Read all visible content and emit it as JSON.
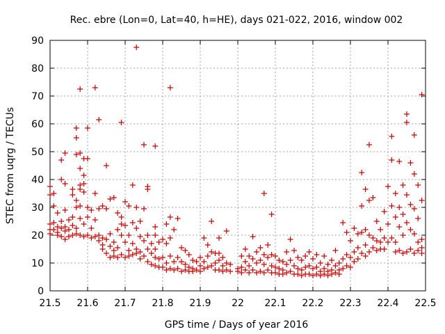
{
  "chart_data": {
    "type": "scatter",
    "title": "Rec. ebre (Lon=0, Lat=40, h=HE), days 021-022, 2016, window 002",
    "xlabel": "GPS time / Days of year 2016",
    "ylabel": "STEC from uqrg / TECUs",
    "xlim": [
      21.5,
      22.5
    ],
    "ylim": [
      0,
      90
    ],
    "x_ticks": [
      "21.5",
      "21.6",
      "21.7",
      "21.8",
      "21.9",
      "22",
      "22.1",
      "22.2",
      "22.3",
      "22.4",
      "22.5"
    ],
    "y_ticks": [
      "0",
      "10",
      "20",
      "30",
      "40",
      "50",
      "60",
      "70",
      "80",
      "90"
    ],
    "grid": true,
    "marker": "plus",
    "color": "#cc0000",
    "points": [
      [
        21.5,
        37.5
      ],
      [
        21.5,
        34.5
      ],
      [
        21.5,
        24.0
      ],
      [
        21.5,
        22.0
      ],
      [
        21.5,
        20.5
      ],
      [
        21.51,
        35.0
      ],
      [
        21.51,
        30.5
      ],
      [
        21.51,
        24.5
      ],
      [
        21.51,
        22.0
      ],
      [
        21.52,
        28.0
      ],
      [
        21.52,
        23.0
      ],
      [
        21.52,
        21.0
      ],
      [
        21.52,
        20.0
      ],
      [
        21.53,
        47.0
      ],
      [
        21.53,
        40.0
      ],
      [
        21.53,
        25.0
      ],
      [
        21.53,
        22.5
      ],
      [
        21.53,
        19.5
      ],
      [
        21.54,
        49.5
      ],
      [
        21.54,
        38.5
      ],
      [
        21.54,
        29.0
      ],
      [
        21.54,
        23.0
      ],
      [
        21.54,
        21.5
      ],
      [
        21.54,
        18.5
      ],
      [
        21.55,
        25.5
      ],
      [
        21.55,
        22.0
      ],
      [
        21.55,
        19.5
      ],
      [
        21.56,
        36.5
      ],
      [
        21.56,
        34.5
      ],
      [
        21.56,
        26.5
      ],
      [
        21.56,
        23.5
      ],
      [
        21.56,
        20.0
      ],
      [
        21.57,
        58.5
      ],
      [
        21.57,
        55.0
      ],
      [
        21.57,
        49.0
      ],
      [
        21.57,
        32.5
      ],
      [
        21.57,
        30.0
      ],
      [
        21.57,
        22.5
      ],
      [
        21.57,
        20.5
      ],
      [
        21.58,
        72.5
      ],
      [
        21.58,
        49.5
      ],
      [
        21.58,
        44.0
      ],
      [
        21.58,
        38.0
      ],
      [
        21.58,
        36.5
      ],
      [
        21.58,
        30.5
      ],
      [
        21.58,
        26.0
      ],
      [
        21.58,
        20.0
      ],
      [
        21.59,
        47.5
      ],
      [
        21.59,
        41.5
      ],
      [
        21.59,
        38.5
      ],
      [
        21.59,
        35.5
      ],
      [
        21.59,
        24.0
      ],
      [
        21.59,
        19.5
      ],
      [
        21.6,
        58.5
      ],
      [
        21.6,
        47.5
      ],
      [
        21.6,
        30.0
      ],
      [
        21.6,
        26.5
      ],
      [
        21.6,
        20.0
      ],
      [
        21.61,
        29.0
      ],
      [
        21.61,
        22.5
      ],
      [
        21.61,
        19.0
      ],
      [
        21.62,
        73.0
      ],
      [
        21.62,
        35.0
      ],
      [
        21.62,
        25.5
      ],
      [
        21.62,
        19.5
      ],
      [
        21.63,
        61.5
      ],
      [
        21.63,
        29.5
      ],
      [
        21.63,
        20.0
      ],
      [
        21.63,
        18.0
      ],
      [
        21.64,
        30.5
      ],
      [
        21.64,
        19.0
      ],
      [
        21.64,
        16.5
      ],
      [
        21.64,
        15.0
      ],
      [
        21.65,
        45.0
      ],
      [
        21.65,
        29.5
      ],
      [
        21.65,
        18.5
      ],
      [
        21.65,
        13.5
      ],
      [
        21.66,
        33.0
      ],
      [
        21.66,
        20.5
      ],
      [
        21.66,
        16.0
      ],
      [
        21.66,
        12.0
      ],
      [
        21.67,
        33.5
      ],
      [
        21.67,
        17.5
      ],
      [
        21.67,
        14.5
      ],
      [
        21.67,
        12.5
      ],
      [
        21.68,
        28.0
      ],
      [
        21.68,
        22.0
      ],
      [
        21.68,
        15.5
      ],
      [
        21.68,
        12.0
      ],
      [
        21.69,
        60.5
      ],
      [
        21.69,
        26.5
      ],
      [
        21.69,
        24.0
      ],
      [
        21.69,
        20.0
      ],
      [
        21.69,
        13.0
      ],
      [
        21.7,
        32.0
      ],
      [
        21.7,
        23.5
      ],
      [
        21.7,
        17.5
      ],
      [
        21.7,
        12.0
      ],
      [
        21.71,
        30.5
      ],
      [
        21.71,
        20.0
      ],
      [
        21.71,
        14.5
      ],
      [
        21.71,
        12.5
      ],
      [
        21.72,
        38.0
      ],
      [
        21.72,
        24.5
      ],
      [
        21.72,
        17.0
      ],
      [
        21.72,
        13.0
      ],
      [
        21.73,
        87.5
      ],
      [
        21.73,
        30.0
      ],
      [
        21.73,
        22.5
      ],
      [
        21.73,
        15.0
      ],
      [
        21.73,
        13.5
      ],
      [
        21.74,
        25.0
      ],
      [
        21.74,
        19.5
      ],
      [
        21.74,
        14.0
      ],
      [
        21.74,
        11.5
      ],
      [
        21.75,
        52.5
      ],
      [
        21.75,
        29.5
      ],
      [
        21.75,
        18.0
      ],
      [
        21.75,
        12.5
      ],
      [
        21.76,
        37.5
      ],
      [
        21.76,
        36.5
      ],
      [
        21.76,
        20.0
      ],
      [
        21.76,
        15.0
      ],
      [
        21.76,
        10.5
      ],
      [
        21.77,
        17.0
      ],
      [
        21.77,
        13.5
      ],
      [
        21.77,
        9.5
      ],
      [
        21.78,
        52.0
      ],
      [
        21.78,
        23.0
      ],
      [
        21.78,
        20.0
      ],
      [
        21.78,
        15.0
      ],
      [
        21.78,
        12.0
      ],
      [
        21.78,
        9.0
      ],
      [
        21.79,
        17.5
      ],
      [
        21.79,
        11.5
      ],
      [
        21.79,
        8.5
      ],
      [
        21.8,
        18.5
      ],
      [
        21.8,
        12.0
      ],
      [
        21.8,
        8.5
      ],
      [
        21.81,
        24.0
      ],
      [
        21.81,
        17.0
      ],
      [
        21.81,
        10.0
      ],
      [
        21.81,
        7.5
      ],
      [
        21.82,
        73.0
      ],
      [
        21.82,
        26.5
      ],
      [
        21.82,
        19.0
      ],
      [
        21.82,
        12.5
      ],
      [
        21.82,
        8.0
      ],
      [
        21.83,
        22.0
      ],
      [
        21.83,
        10.5
      ],
      [
        21.83,
        7.5
      ],
      [
        21.84,
        26.0
      ],
      [
        21.84,
        12.0
      ],
      [
        21.84,
        8.0
      ],
      [
        21.85,
        15.5
      ],
      [
        21.85,
        10.5
      ],
      [
        21.85,
        7.0
      ],
      [
        21.86,
        14.5
      ],
      [
        21.86,
        9.5
      ],
      [
        21.86,
        7.5
      ],
      [
        21.87,
        13.0
      ],
      [
        21.87,
        8.5
      ],
      [
        21.87,
        7.0
      ],
      [
        21.88,
        11.0
      ],
      [
        21.88,
        8.0
      ],
      [
        21.88,
        7.0
      ],
      [
        21.89,
        10.5
      ],
      [
        21.89,
        7.5
      ],
      [
        21.9,
        12.0
      ],
      [
        21.9,
        9.0
      ],
      [
        21.9,
        7.0
      ],
      [
        21.91,
        19.0
      ],
      [
        21.91,
        10.5
      ],
      [
        21.91,
        8.0
      ],
      [
        21.92,
        16.5
      ],
      [
        21.92,
        12.5
      ],
      [
        21.92,
        8.5
      ],
      [
        21.93,
        25.0
      ],
      [
        21.93,
        14.0
      ],
      [
        21.93,
        9.0
      ],
      [
        21.94,
        13.5
      ],
      [
        21.94,
        10.0
      ],
      [
        21.94,
        7.5
      ],
      [
        21.95,
        19.0
      ],
      [
        21.95,
        13.5
      ],
      [
        21.95,
        11.0
      ],
      [
        21.95,
        7.5
      ],
      [
        21.96,
        12.0
      ],
      [
        21.96,
        9.0
      ],
      [
        21.96,
        7.0
      ],
      [
        21.97,
        21.5
      ],
      [
        21.97,
        10.0
      ],
      [
        21.97,
        7.5
      ],
      [
        21.98,
        9.5
      ],
      [
        21.98,
        7.0
      ],
      [
        22.0,
        8.0
      ],
      [
        22.0,
        7.0
      ],
      [
        22.01,
        12.5
      ],
      [
        22.01,
        8.5
      ],
      [
        22.01,
        6.5
      ],
      [
        22.02,
        15.0
      ],
      [
        22.02,
        10.5
      ],
      [
        22.02,
        7.5
      ],
      [
        22.03,
        12.5
      ],
      [
        22.03,
        9.0
      ],
      [
        22.03,
        6.5
      ],
      [
        22.04,
        19.5
      ],
      [
        22.04,
        11.5
      ],
      [
        22.04,
        7.5
      ],
      [
        22.05,
        14.0
      ],
      [
        22.05,
        10.0
      ],
      [
        22.05,
        6.5
      ],
      [
        22.06,
        15.5
      ],
      [
        22.06,
        11.0
      ],
      [
        22.06,
        7.0
      ],
      [
        22.07,
        35.0
      ],
      [
        22.07,
        13.0
      ],
      [
        22.07,
        9.5
      ],
      [
        22.07,
        6.5
      ],
      [
        22.08,
        16.5
      ],
      [
        22.08,
        12.0
      ],
      [
        22.08,
        7.5
      ],
      [
        22.09,
        27.5
      ],
      [
        22.09,
        13.0
      ],
      [
        22.09,
        9.0
      ],
      [
        22.09,
        6.5
      ],
      [
        22.1,
        12.5
      ],
      [
        22.1,
        8.5
      ],
      [
        22.1,
        6.5
      ],
      [
        22.11,
        11.0
      ],
      [
        22.11,
        8.0
      ],
      [
        22.11,
        6.0
      ],
      [
        22.12,
        10.5
      ],
      [
        22.12,
        7.5
      ],
      [
        22.12,
        6.0
      ],
      [
        22.13,
        14.0
      ],
      [
        22.13,
        9.5
      ],
      [
        22.13,
        6.5
      ],
      [
        22.14,
        18.5
      ],
      [
        22.14,
        11.0
      ],
      [
        22.14,
        7.0
      ],
      [
        22.15,
        14.5
      ],
      [
        22.15,
        9.0
      ],
      [
        22.15,
        6.0
      ],
      [
        22.16,
        12.0
      ],
      [
        22.16,
        8.0
      ],
      [
        22.16,
        6.0
      ],
      [
        22.17,
        11.0
      ],
      [
        22.17,
        7.5
      ],
      [
        22.17,
        5.5
      ],
      [
        22.18,
        12.5
      ],
      [
        22.18,
        8.5
      ],
      [
        22.18,
        6.0
      ],
      [
        22.19,
        14.0
      ],
      [
        22.19,
        9.0
      ],
      [
        22.19,
        6.0
      ],
      [
        22.2,
        11.5
      ],
      [
        22.2,
        8.0
      ],
      [
        22.2,
        5.5
      ],
      [
        22.21,
        13.0
      ],
      [
        22.21,
        8.5
      ],
      [
        22.21,
        6.0
      ],
      [
        22.22,
        10.0
      ],
      [
        22.22,
        7.0
      ],
      [
        22.22,
        5.5
      ],
      [
        22.23,
        12.5
      ],
      [
        22.23,
        8.0
      ],
      [
        22.23,
        6.0
      ],
      [
        22.24,
        9.5
      ],
      [
        22.24,
        7.0
      ],
      [
        22.24,
        5.5
      ],
      [
        22.25,
        11.0
      ],
      [
        22.25,
        7.5
      ],
      [
        22.25,
        6.0
      ],
      [
        22.26,
        14.5
      ],
      [
        22.26,
        9.0
      ],
      [
        22.26,
        6.5
      ],
      [
        22.27,
        10.0
      ],
      [
        22.27,
        7.5
      ],
      [
        22.27,
        6.0
      ],
      [
        22.28,
        24.5
      ],
      [
        22.28,
        11.5
      ],
      [
        22.28,
        8.0
      ],
      [
        22.29,
        21.0
      ],
      [
        22.29,
        13.0
      ],
      [
        22.29,
        9.0
      ],
      [
        22.3,
        18.0
      ],
      [
        22.3,
        12.0
      ],
      [
        22.3,
        8.5
      ],
      [
        22.31,
        22.5
      ],
      [
        22.31,
        14.0
      ],
      [
        22.31,
        10.5
      ],
      [
        22.32,
        20.5
      ],
      [
        22.32,
        15.5
      ],
      [
        22.32,
        11.5
      ],
      [
        22.33,
        42.5
      ],
      [
        22.33,
        30.5
      ],
      [
        22.33,
        21.0
      ],
      [
        22.33,
        13.5
      ],
      [
        22.34,
        36.5
      ],
      [
        22.34,
        22.0
      ],
      [
        22.34,
        16.5
      ],
      [
        22.34,
        12.5
      ],
      [
        22.35,
        52.5
      ],
      [
        22.35,
        32.5
      ],
      [
        22.35,
        20.0
      ],
      [
        22.35,
        14.0
      ],
      [
        22.36,
        33.5
      ],
      [
        22.36,
        19.0
      ],
      [
        22.36,
        15.5
      ],
      [
        22.37,
        25.0
      ],
      [
        22.37,
        18.0
      ],
      [
        22.37,
        14.5
      ],
      [
        22.38,
        22.0
      ],
      [
        22.38,
        17.5
      ],
      [
        22.38,
        15.0
      ],
      [
        22.39,
        28.5
      ],
      [
        22.39,
        19.0
      ],
      [
        22.39,
        15.0
      ],
      [
        22.4,
        37.5
      ],
      [
        22.4,
        24.0
      ],
      [
        22.4,
        17.5
      ],
      [
        22.41,
        55.5
      ],
      [
        22.41,
        47.0
      ],
      [
        22.41,
        30.5
      ],
      [
        22.41,
        19.0
      ],
      [
        22.42,
        35.0
      ],
      [
        22.42,
        26.5
      ],
      [
        22.42,
        17.5
      ],
      [
        22.42,
        14.0
      ],
      [
        22.43,
        46.5
      ],
      [
        22.43,
        30.0
      ],
      [
        22.43,
        23.0
      ],
      [
        22.43,
        14.5
      ],
      [
        22.44,
        38.0
      ],
      [
        22.44,
        27.5
      ],
      [
        22.44,
        20.0
      ],
      [
        22.44,
        13.5
      ],
      [
        22.45,
        63.5
      ],
      [
        22.45,
        60.5
      ],
      [
        22.45,
        34.5
      ],
      [
        22.45,
        24.5
      ],
      [
        22.45,
        14.0
      ],
      [
        22.46,
        46.0
      ],
      [
        22.46,
        31.0
      ],
      [
        22.46,
        22.0
      ],
      [
        22.46,
        15.0
      ],
      [
        22.47,
        56.0
      ],
      [
        22.47,
        42.0
      ],
      [
        22.47,
        29.5
      ],
      [
        22.47,
        20.5
      ],
      [
        22.47,
        13.5
      ],
      [
        22.48,
        38.0
      ],
      [
        22.48,
        26.0
      ],
      [
        22.48,
        17.5
      ],
      [
        22.48,
        14.5
      ],
      [
        22.49,
        70.5
      ],
      [
        22.49,
        32.5
      ],
      [
        22.49,
        18.5
      ],
      [
        22.49,
        15.5
      ],
      [
        22.49,
        13.5
      ]
    ]
  }
}
